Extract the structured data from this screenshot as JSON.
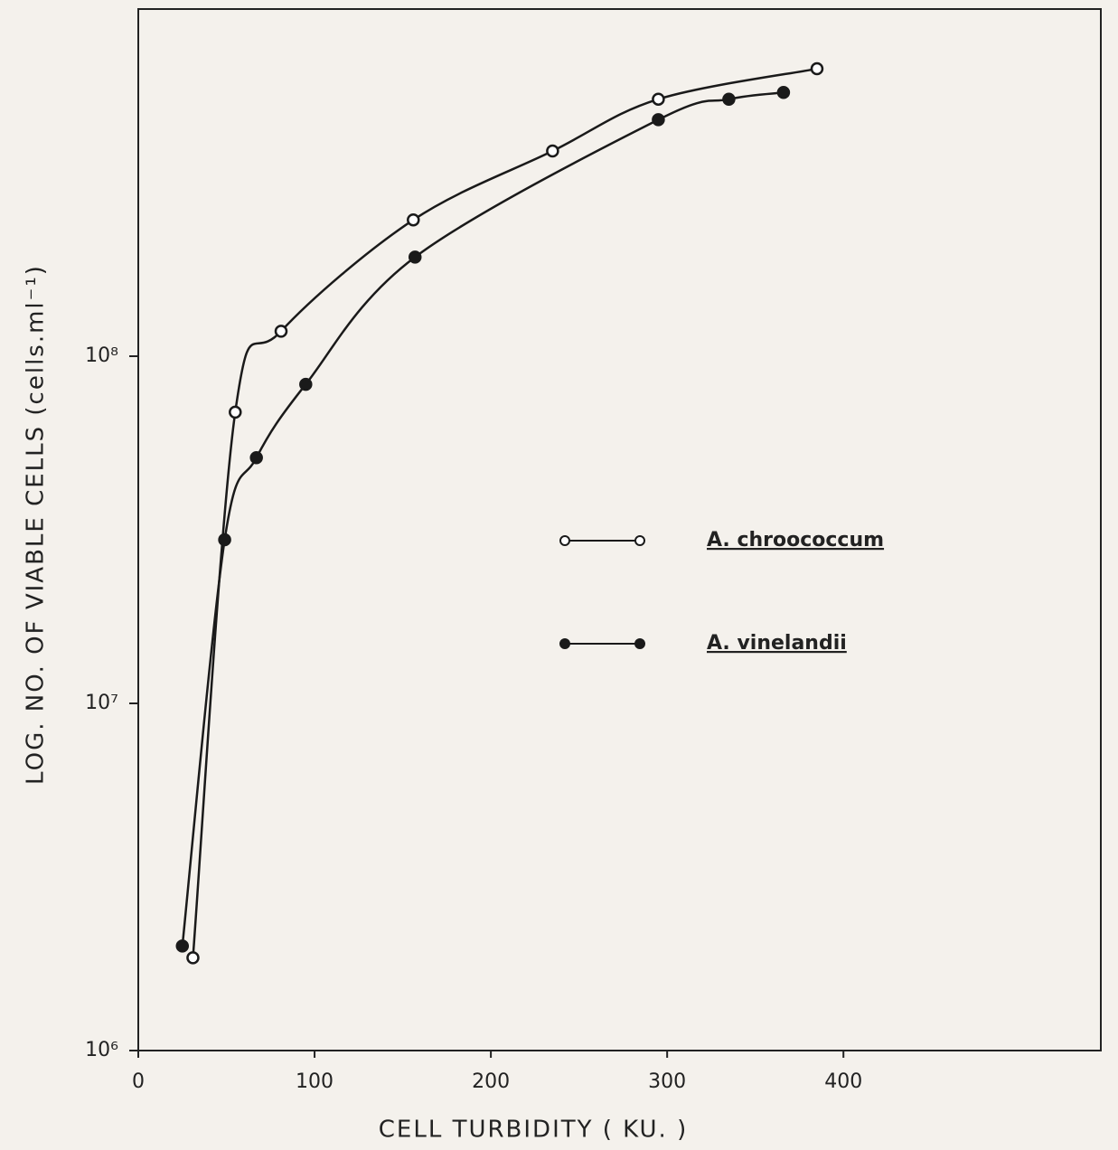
{
  "chart_data": {
    "type": "line",
    "xlabel": "CELL TURBIDITY ( KU. )",
    "ylabel": "LOG. NO. OF VIABLE CELLS (cells.ml⁻¹)",
    "xlim": [
      0,
      546
    ],
    "xticks": [
      0,
      100,
      200,
      300,
      400
    ],
    "ylim": [
      1000000,
      1000000000
    ],
    "log_y": true,
    "yticks": [
      {
        "value": 1000000,
        "label": "10⁶"
      },
      {
        "value": 10000000,
        "label": "10⁷"
      },
      {
        "value": 100000000,
        "label": "10⁸"
      }
    ],
    "grid": false,
    "series": [
      {
        "name": "A. chroococcum",
        "color": "#1a1a1a",
        "marker": "open",
        "x": [
          31,
          55,
          81,
          156,
          235,
          295,
          385
        ],
        "values": [
          1850000,
          69000000,
          118000000,
          247000000,
          390000000,
          550000000,
          673000000
        ]
      },
      {
        "name": "A. vinelandii",
        "color": "#1a1a1a",
        "marker": "filled",
        "x": [
          25,
          49,
          67,
          95,
          157,
          295,
          335,
          366
        ],
        "values": [
          2000000,
          29600000,
          51000000,
          83000000,
          193000000,
          480000000,
          550000000,
          575000000
        ]
      }
    ]
  }
}
